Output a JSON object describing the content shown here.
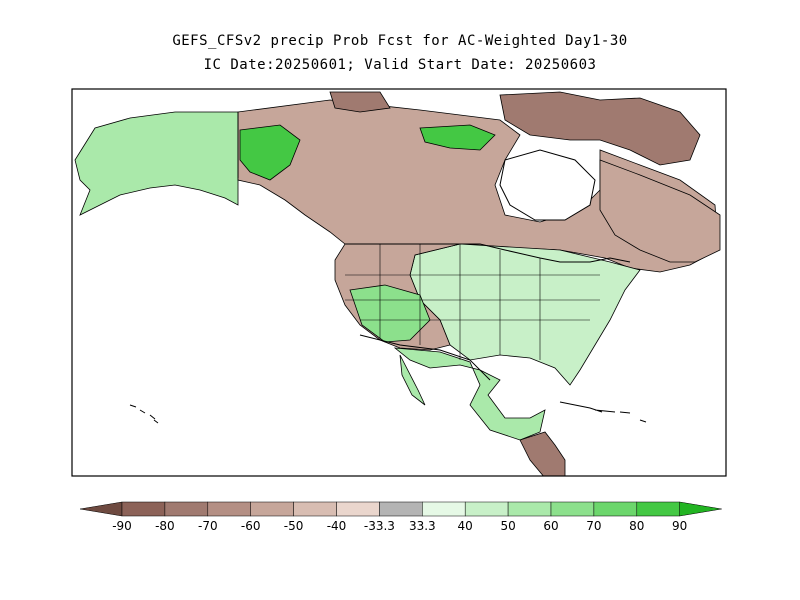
{
  "title": {
    "line1": "GEFS_CFSv2 precip Prob Fcst for AC-Weighted Day1-30",
    "line2": "IC Date:20250601; Valid Start Date: 20250603"
  },
  "legend": {
    "labels": [
      "-90",
      "-80",
      "-70",
      "-60",
      "-50",
      "-40",
      "-33.3",
      "33.3",
      "40",
      "50",
      "60",
      "70",
      "80",
      "90"
    ],
    "colors": {
      "dry_extreme": "#6e4a40",
      "dry": [
        "#8c6258",
        "#a07a70",
        "#b48f84",
        "#c6a69a",
        "#d8bdb2",
        "#ead6cd"
      ],
      "neutral": "#b4b4b4",
      "wet": [
        "#e6f9e6",
        "#c8f0c8",
        "#aae9aa",
        "#8ce08c",
        "#6cd66c",
        "#44c844"
      ],
      "wet_extreme": "#22b422"
    }
  },
  "map": {
    "land_colors": {
      "alaska_wet": "#aae9aa",
      "yukon_wet": "#44c844",
      "canada_dry": "#c6a69a",
      "arctic_dry": "#a07a70",
      "eastern_wet": "#c8f0c8",
      "southwest_wet": "#8ce08c",
      "mexico_wet": "#aae9aa",
      "central_america_dry": "#a07a70"
    },
    "water_color": "#ffffff",
    "border_color": "#000000"
  }
}
